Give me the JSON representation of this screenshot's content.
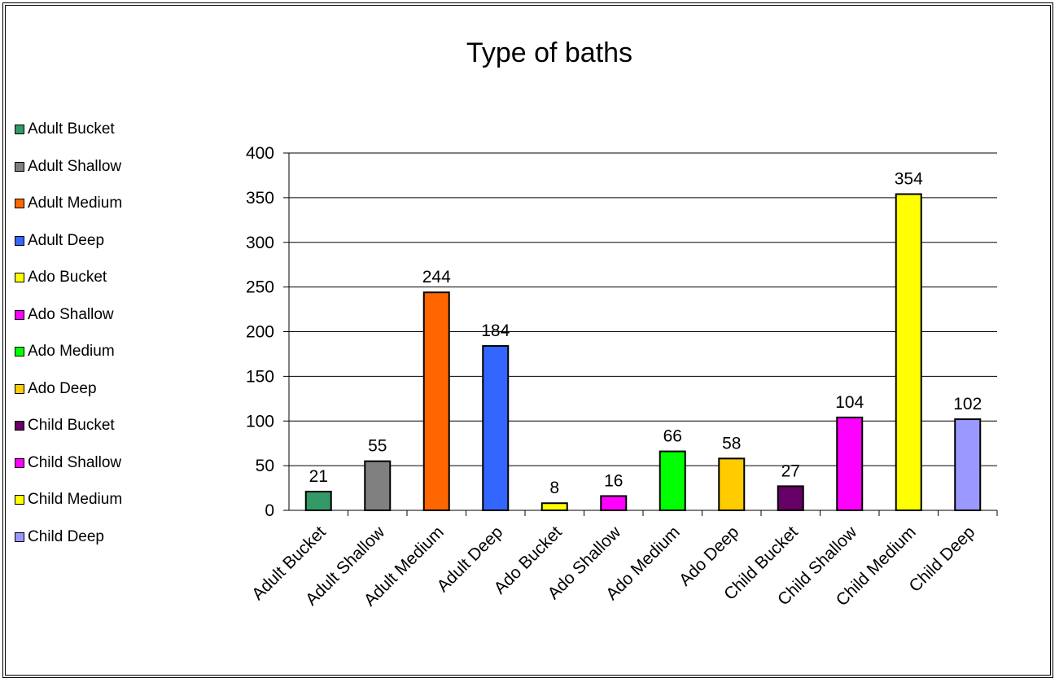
{
  "chart_data": {
    "type": "bar",
    "title": "Type of baths",
    "xlabel": "",
    "ylabel": "",
    "ylim": [
      0,
      400
    ],
    "yticks": [
      0,
      50,
      100,
      150,
      200,
      250,
      300,
      350,
      400
    ],
    "grid": true,
    "legend_position": "left",
    "categories": [
      "Adult Bucket",
      "Adult Shallow",
      "Adult Medium",
      "Adult Deep",
      "Ado Bucket",
      "Ado Shallow",
      "Ado Medium",
      "Ado Deep",
      "Child Bucket",
      "Child Shallow",
      "Child Medium",
      "Child Deep"
    ],
    "values": [
      21,
      55,
      244,
      184,
      8,
      16,
      66,
      58,
      27,
      104,
      354,
      102
    ],
    "colors": [
      "#339966",
      "#808080",
      "#FF6600",
      "#3366FF",
      "#FFFF00",
      "#FF00FF",
      "#00FF00",
      "#FFCC00",
      "#660066",
      "#FF00FF",
      "#FFFF00",
      "#9999FF"
    ],
    "legend": [
      "Adult Bucket",
      "Adult Shallow",
      "Adult Medium",
      "Adult Deep",
      "Ado Bucket",
      "Ado Shallow",
      "Ado Medium",
      "Ado Deep",
      "Child Bucket",
      "Child Shallow",
      "Child Medium",
      "Child Deep"
    ]
  }
}
